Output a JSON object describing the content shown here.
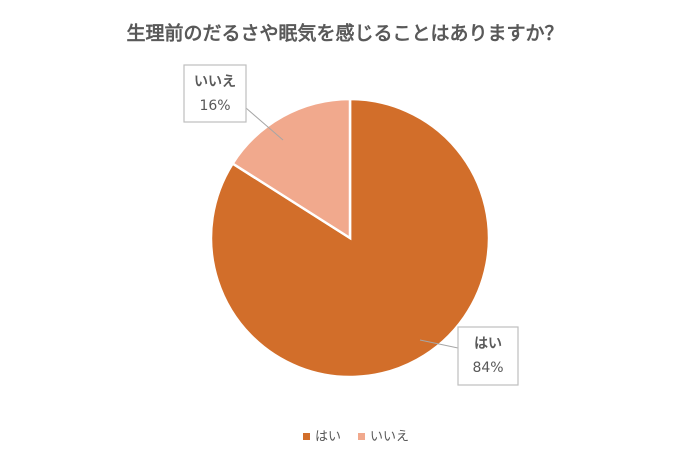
{
  "chart_data": {
    "type": "pie",
    "title": "生理前のだるさや眠気を感じることはありますか？",
    "categories": [
      "はい",
      "いいえ"
    ],
    "values": [
      84,
      16
    ],
    "value_labels": [
      "84%",
      "16%"
    ],
    "colors": [
      "#D26E2A",
      "#F1A98D"
    ],
    "legend": "bottom"
  }
}
